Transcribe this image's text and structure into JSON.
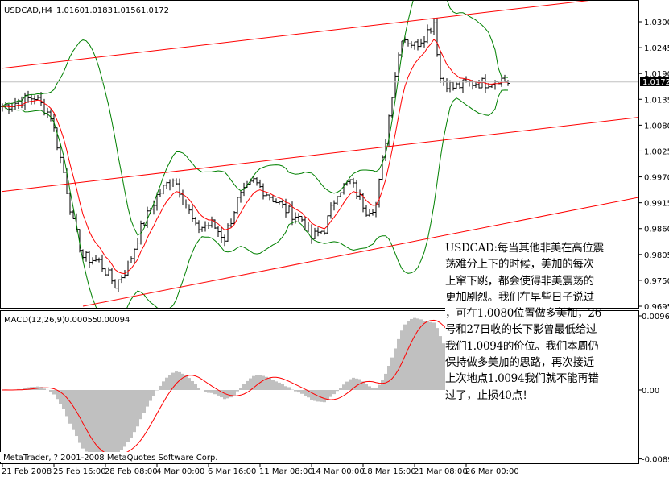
{
  "header": {
    "symbol": "USDCAD,H4",
    "open": "1.0160",
    "high": "1.0183",
    "low": "1.0156",
    "close": "1.0172"
  },
  "macd_header": {
    "label": "MACD(12,26,9)",
    "main": "0.00055",
    "signal": "0.00094"
  },
  "copyright": "MetaTrader, ? 2001-2008 MetaQuotes Software Corp.",
  "current_price": "1.0172",
  "colors": {
    "bars": "#000000",
    "moving_average": "#ff0000",
    "bollinger": "#008000",
    "trendlines": "#ff0000",
    "histogram": "#c0c0c0",
    "signal": "#ff0000",
    "price_label_bg": "#000000"
  },
  "note_lines": [
    "USDCAD:每当其他非美在高位震",
    "荡难分上下的时候，美加的每次",
    "上窜下跳，都会使得非美震荡的",
    "更加剧烈。我们在早些日子说过",
    "，可在1.0080位置做多美加，26",
    "号和27日收的长下影曾最低给过",
    "我们1.0094的价位。我们本周仍",
    "保持做多美加的思路，再次接近",
    "上次地点1.0094我们就不能再错",
    "过了，止损40点！"
  ],
  "chart_data": [
    {
      "type": "ohlc",
      "title": "USDCAD,H4",
      "price_ticks": [
        "1.0300",
        "1.0245",
        "1.0190",
        "1.0135",
        "1.0080",
        "1.0025",
        "0.9970",
        "0.9915",
        "0.9860",
        "0.9805",
        "0.9750",
        "0.9695"
      ],
      "ylim": [
        0.9695,
        1.03
      ],
      "time_ticks": [
        "21 Feb 2008",
        "25 Feb 16:00",
        "28 Feb 08:00",
        "4 Mar 00:00",
        "6 Mar 16:00",
        "11 Mar 08:00",
        "14 Mar 00:00",
        "18 Mar 16:00",
        "21 Mar 08:00",
        "26 Mar 00:00"
      ],
      "close_knots": [
        {
          "bar": 0,
          "close": 1.012
        },
        {
          "bar": 10,
          "close": 1.014
        },
        {
          "bar": 15,
          "close": 1.01
        },
        {
          "bar": 19,
          "close": 0.998
        },
        {
          "bar": 22,
          "close": 0.987
        },
        {
          "bar": 25,
          "close": 0.98
        },
        {
          "bar": 30,
          "close": 0.979
        },
        {
          "bar": 35,
          "close": 0.974
        },
        {
          "bar": 39,
          "close": 0.978
        },
        {
          "bar": 43,
          "close": 0.986
        },
        {
          "bar": 48,
          "close": 0.993
        },
        {
          "bar": 53,
          "close": 0.997
        },
        {
          "bar": 56,
          "close": 0.993
        },
        {
          "bar": 60,
          "close": 0.986
        },
        {
          "bar": 65,
          "close": 0.987
        },
        {
          "bar": 69,
          "close": 0.984
        },
        {
          "bar": 73,
          "close": 0.992
        },
        {
          "bar": 78,
          "close": 0.996
        },
        {
          "bar": 83,
          "close": 0.993
        },
        {
          "bar": 88,
          "close": 0.99
        },
        {
          "bar": 93,
          "close": 0.988
        },
        {
          "bar": 96,
          "close": 0.984
        },
        {
          "bar": 100,
          "close": 0.986
        },
        {
          "bar": 104,
          "close": 0.994
        },
        {
          "bar": 108,
          "close": 0.996
        },
        {
          "bar": 113,
          "close": 0.99
        },
        {
          "bar": 116,
          "close": 0.991
        },
        {
          "bar": 119,
          "close": 1.005
        },
        {
          "bar": 121,
          "close": 1.015
        },
        {
          "bar": 124,
          "close": 1.027
        },
        {
          "bar": 128,
          "close": 1.025
        },
        {
          "bar": 131,
          "close": 1.027
        },
        {
          "bar": 134,
          "close": 1.03
        },
        {
          "bar": 136,
          "close": 1.018
        },
        {
          "bar": 140,
          "close": 1.016
        },
        {
          "bar": 145,
          "close": 1.017
        },
        {
          "bar": 150,
          "close": 1.017
        },
        {
          "bar": 154,
          "close": 1.018
        },
        {
          "bar": 157,
          "close": 1.0172
        }
      ],
      "trendlines": [
        {
          "from": {
            "bar": 0,
            "price": 1.0201
          },
          "to": {
            "bar": 198,
            "price": 1.0358
          }
        },
        {
          "from": {
            "bar": 0,
            "price": 0.9939
          },
          "to": {
            "bar": 198,
            "price": 1.0097
          }
        },
        {
          "from": {
            "bar": 25,
            "price": 0.9695
          },
          "to": {
            "bar": 198,
            "price": 0.9927
          }
        }
      ]
    },
    {
      "type": "bar+line",
      "title": "MACD(12,26,9)",
      "y_ticks": [
        "0.00963",
        "0.00",
        "-0.00896"
      ],
      "ylim": [
        -0.00896,
        0.00963
      ]
    }
  ]
}
